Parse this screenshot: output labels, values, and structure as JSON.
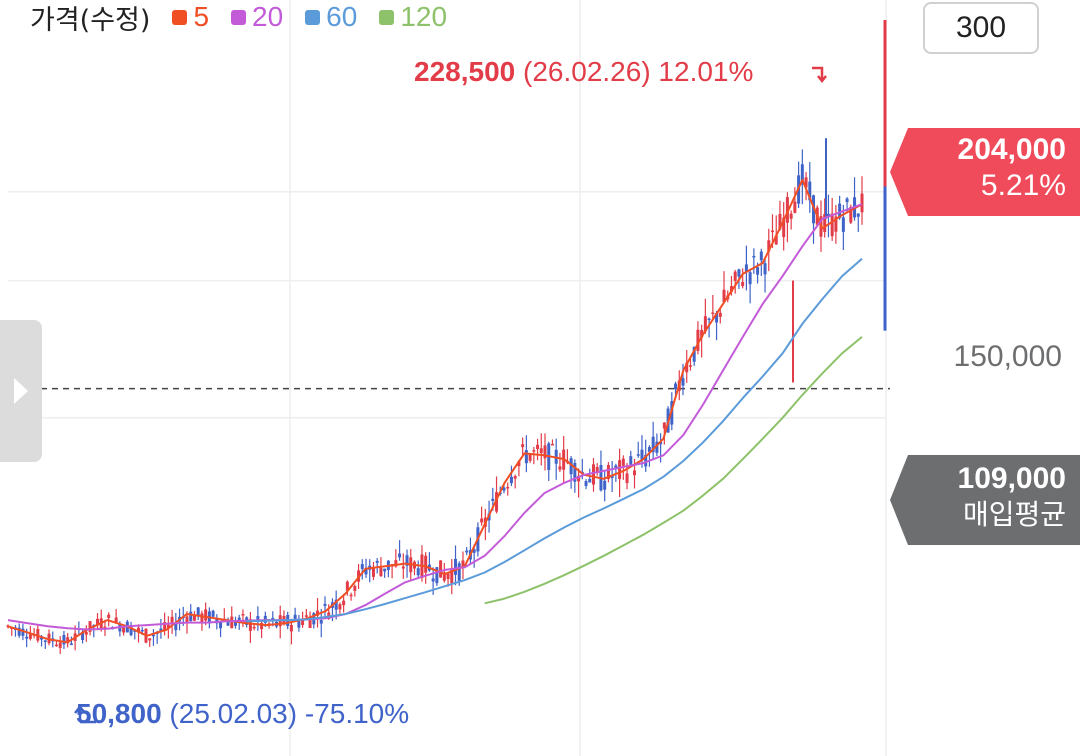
{
  "legend": {
    "title": "가격(수정)",
    "items": [
      {
        "label": "5",
        "color": "#f04e23"
      },
      {
        "label": "20",
        "color": "#c35bd8"
      },
      {
        "label": "60",
        "color": "#5b9bd9"
      },
      {
        "label": "120",
        "color": "#8dc26a"
      }
    ]
  },
  "period_button": "300",
  "current_price": {
    "value": "204,000",
    "change": "5.21%"
  },
  "avg_price": {
    "value": "109,000",
    "label": "매입평균"
  },
  "y_tick": "150,000",
  "high_annotation": {
    "value": "228,500",
    "date": "(26.02.26)",
    "change": "12.01%"
  },
  "low_annotation": {
    "value": "50,800",
    "date": "(25.02.03)",
    "change": "-75.10%"
  },
  "colors": {
    "up": "#e23c48",
    "down": "#3f63c9",
    "current_tag": "#ef4b5b",
    "avg_tag": "#6d6e70"
  },
  "icons": {
    "expand": "chevron-right-icon",
    "high_marker": "arrow-down-corner-icon",
    "low_marker": "arrow-up-corner-icon"
  },
  "chart_data": {
    "type": "line",
    "yscale": "log",
    "ylim": [
      45000,
      265000
    ],
    "y_ticks": [
      150000
    ],
    "avg_line": 109000,
    "grid": true,
    "legend_position": "top-left",
    "series": [
      {
        "name": "5",
        "color": "#f04e23",
        "values": [
          54000,
          53000,
          52000,
          51500,
          53500,
          55000,
          54000,
          52500,
          53500,
          56000,
          55500,
          55000,
          54500,
          54200,
          54500,
          55200,
          56500,
          59500,
          64000,
          64500,
          65000,
          64500,
          63000,
          64500,
          73000,
          82500,
          90000,
          89500,
          88500,
          84500,
          83500,
          85500,
          88500,
          94000,
          115000,
          128000,
          140000,
          153000,
          158000,
          178000,
          202000,
          175000,
          182000,
          188000
        ]
      },
      {
        "name": "20",
        "color": "#c35bd8",
        "values": [
          55000,
          54500,
          54000,
          53700,
          53500,
          53600,
          54000,
          54200,
          54400,
          54600,
          54600,
          54800,
          54900,
          55000,
          55000,
          55100,
          55300,
          56000,
          57500,
          59500,
          61500,
          62700,
          63800,
          64300,
          66500,
          70500,
          75500,
          80000,
          82500,
          84500,
          85500,
          86500,
          87500,
          89500,
          95000,
          104000,
          115000,
          127000,
          140000,
          152000,
          166000,
          180000,
          184000,
          188000
        ]
      },
      {
        "name": "60",
        "color": "#5b9bd9",
        "values": [
          null,
          null,
          null,
          null,
          null,
          null,
          null,
          null,
          null,
          null,
          null,
          null,
          54800,
          54900,
          55000,
          55100,
          55500,
          56000,
          56800,
          57700,
          58700,
          59700,
          60800,
          61900,
          63300,
          65300,
          67600,
          70000,
          72300,
          74500,
          76500,
          78700,
          81000,
          84000,
          88000,
          93000,
          99000,
          106000,
          113000,
          121000,
          132000,
          142000,
          152000,
          160000
        ]
      },
      {
        "name": "120",
        "color": "#8dc26a",
        "values": [
          null,
          null,
          null,
          null,
          null,
          null,
          null,
          null,
          null,
          null,
          null,
          null,
          null,
          null,
          null,
          null,
          null,
          null,
          null,
          null,
          null,
          null,
          null,
          null,
          57800,
          58600,
          59800,
          61200,
          62800,
          64600,
          66500,
          68600,
          70800,
          73300,
          76000,
          79500,
          83500,
          88500,
          94000,
          100000,
          107000,
          114000,
          121000,
          127000
        ]
      }
    ]
  }
}
